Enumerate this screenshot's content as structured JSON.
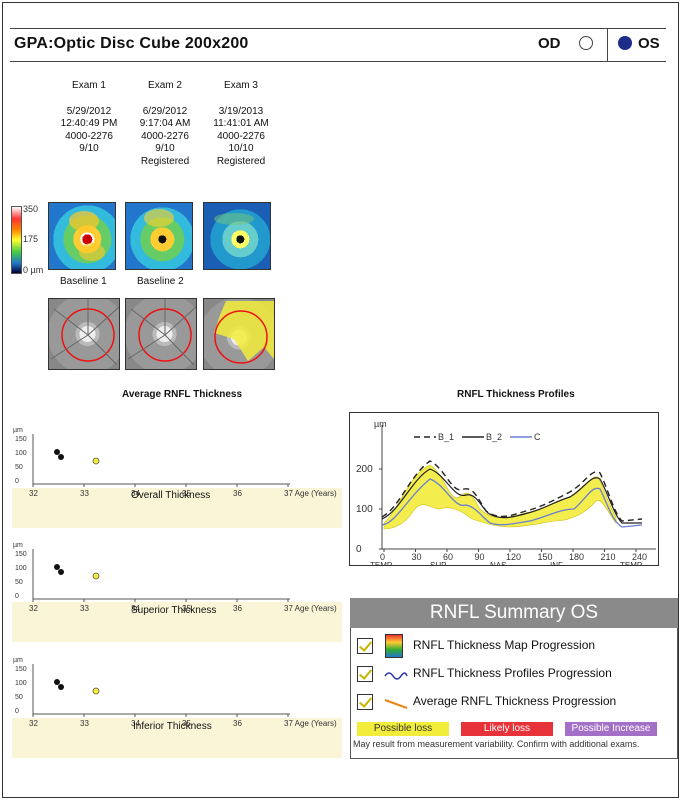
{
  "header": {
    "title": "GPA:Optic Disc Cube 200x200",
    "od_label": "OD",
    "os_label": "OS",
    "selected_eye": "OS"
  },
  "exams": [
    {
      "name": "Exam 1",
      "date": "5/29/2012",
      "time": "12:40:49 PM",
      "id": "4000-2276",
      "signal": "9/10",
      "status": ""
    },
    {
      "name": "Exam 2",
      "date": "6/29/2012",
      "time": "9:17:04 AM",
      "id": "4000-2276",
      "signal": "9/10",
      "status": "Registered"
    },
    {
      "name": "Exam 3",
      "date": "3/19/2013",
      "time": "11:41:01 AM",
      "id": "4000-2276",
      "signal": "10/10",
      "status": "Registered"
    }
  ],
  "colorbar": {
    "top": "350",
    "mid": "175",
    "bottom": "0 µm"
  },
  "baselines": [
    "Baseline 1",
    "Baseline 2"
  ],
  "avg_rnfl": {
    "title": "Average RNFL Thickness",
    "unit": "µm",
    "x_ticks": [
      "32",
      "33",
      "34",
      "35",
      "36",
      "37 Age (Years)"
    ],
    "y_ticks": [
      "150",
      "100",
      "50",
      "0"
    ],
    "plots": [
      {
        "label": "Overall Thickness"
      },
      {
        "label": "Superior Thickness"
      },
      {
        "label": "Inferior Thickness"
      }
    ]
  },
  "profiles": {
    "title": "RNFL Thickness Profiles",
    "unit": "µm",
    "legend": [
      "B_1",
      "B_2",
      "C"
    ],
    "y_ticks": [
      "200",
      "100",
      "0"
    ],
    "x_ticks": [
      "0",
      "30",
      "60",
      "90",
      "120",
      "150",
      "180",
      "210",
      "240"
    ],
    "x_labels": [
      "TEMP",
      "SUP",
      "NAS",
      "INF",
      "TEMP"
    ]
  },
  "summary": {
    "title": "RNFL Summary OS",
    "items": [
      "RNFL Thickness Map Progression",
      "RNFL Thickness Profiles Progression",
      "Average RNFL Thickness Progression"
    ],
    "legend": [
      {
        "label": "Possible loss",
        "color": "#f2ec3a"
      },
      {
        "label": "Likely loss",
        "color": "#e8323a"
      },
      {
        "label": "Possible Increase",
        "color": "#a46fc7"
      }
    ],
    "note": "May result from measurement variability. Confirm with additional exams."
  }
}
